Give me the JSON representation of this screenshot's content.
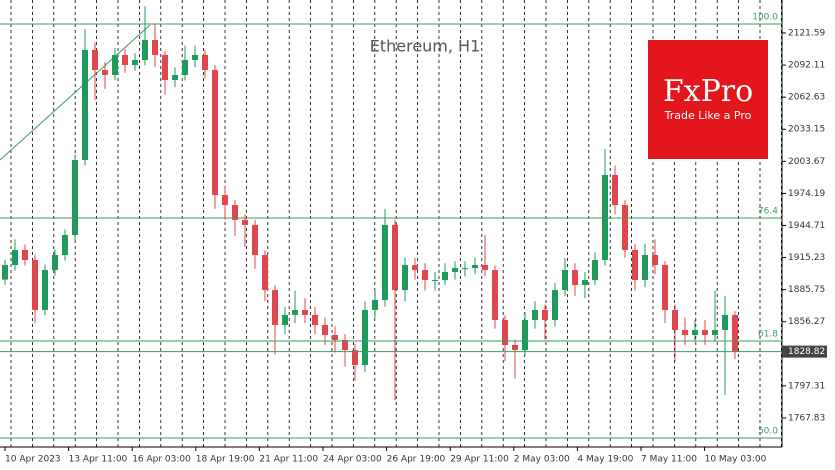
{
  "chart_data": {
    "type": "candlestick",
    "title": "Ethereum, H1",
    "open": [
      1895,
      1908.4,
      1922.2,
      1913.0,
      1867.1,
      1903.8,
      1917.6,
      1936.0,
      2004.9,
      2106.0,
      2087.6,
      2083.0,
      2101.4,
      2092.2,
      2096.8,
      2115.2,
      2101.4,
      2078.4,
      2083.0,
      2096.8,
      2101.4,
      2087.6,
      1972.7,
      1963.5,
      1949.8,
      1945.2,
      1917.6,
      1885.4,
      1853.3,
      1862.5,
      1867.1,
      1862.5,
      1853.3,
      1844.1,
      1839.5,
      1830.3,
      1816.5,
      1867.1,
      1876.3,
      1945.2,
      1885.4,
      1908.4,
      1903.8,
      1894.6,
      1894.6,
      1902.0,
      1905.6,
      1905.6,
      1908.4,
      1903.8,
      1857.9,
      1834.9,
      1830.3,
      1857.9,
      1867.1,
      1857.9,
      1885.4,
      1903.8,
      1890.0,
      1894.6,
      1913.0,
      1991.1,
      1963.5,
      1922.2,
      1894.6,
      1917.6,
      1908.4,
      1867.1,
      1848.7,
      1844.1,
      1848.7,
      1844.1,
      1848.7,
      1862.5
    ],
    "high": [
      1913.4,
      1932,
      1927.2,
      1918,
      1908.8,
      1922.6,
      1941,
      2010,
      2125,
      2113,
      2095,
      2108,
      2107,
      2103,
      2146,
      2130,
      2105,
      2090,
      2110,
      2110,
      2106,
      2092,
      1980,
      1968,
      1955,
      1950,
      1922,
      1890,
      1870,
      1885,
      1878,
      1870,
      1860,
      1852,
      1845,
      1836,
      1875,
      1885,
      1960,
      1950,
      1915,
      1915,
      1910,
      1902,
      1910,
      1912,
      1912,
      1915,
      1936,
      1908,
      1862,
      1840,
      1865,
      1875,
      1872,
      1892,
      1915,
      1910,
      1902,
      1920,
      2015,
      2000,
      1968,
      1928,
      1928,
      1932,
      1912,
      1872,
      1860,
      1858,
      1858,
      1885,
      1880,
      1866
    ],
    "low": [
      1890,
      1903.4,
      1908,
      1855,
      1862.1,
      1898.8,
      1912.6,
      1931,
      2000,
      2060,
      2070,
      2078,
      2085,
      2087,
      2092,
      2090,
      2065,
      2072,
      2078,
      2090,
      2080,
      1960,
      1950,
      1935,
      1925,
      1905,
      1875,
      1826,
      1845,
      1855,
      1855,
      1845,
      1835,
      1828,
      1815,
      1802,
      1810,
      1860,
      1870,
      1784,
      1875,
      1895,
      1885,
      1885,
      1890,
      1895,
      1898,
      1900,
      1898,
      1850,
      1820,
      1804,
      1825,
      1850,
      1840,
      1852,
      1880,
      1880,
      1878,
      1890,
      1908,
      1955,
      1915,
      1885,
      1888,
      1900,
      1855,
      1820,
      1835,
      1838,
      1835,
      1838,
      1789,
      1822
    ],
    "close": [
      1908.4,
      1922.2,
      1913.0,
      1867.1,
      1903.8,
      1917.6,
      1936.0,
      2004.9,
      2106.0,
      2087.6,
      2083.0,
      2101.4,
      2092.2,
      2096.8,
      2115.2,
      2101.4,
      2078.4,
      2083.0,
      2096.8,
      2101.4,
      2087.6,
      1972.7,
      1963.5,
      1949.8,
      1945.2,
      1917.6,
      1885.4,
      1853.3,
      1862.5,
      1867.1,
      1862.5,
      1853.3,
      1844.1,
      1839.5,
      1830.3,
      1816.5,
      1867.1,
      1876.3,
      1945.2,
      1885.4,
      1908.4,
      1903.8,
      1894.6,
      1894.6,
      1902.0,
      1905.6,
      1905.6,
      1908.4,
      1903.8,
      1857.9,
      1834.9,
      1830.3,
      1857.9,
      1867.1,
      1857.9,
      1885.4,
      1903.8,
      1890.0,
      1894.6,
      1913.0,
      1991.1,
      1963.5,
      1922.2,
      1894.6,
      1917.6,
      1908.4,
      1867.1,
      1848.7,
      1844.1,
      1848.7,
      1844.1,
      1848.7,
      1862.5,
      1828.82
    ],
    "up_color": "#1f9a5c",
    "down_color": "#e0474c",
    "ylim": [
      1741.18,
      2151.91
    ],
    "yticks": [
      2121.59,
      2092.11,
      2062.63,
      2033.15,
      2003.67,
      1974.19,
      1944.71,
      1915.23,
      1885.75,
      1856.27,
      1797.31,
      1767.83
    ],
    "x_labels": [
      "10 Apr 2023",
      "13 Apr 11:00",
      "16 Apr 03:00",
      "18 Apr 19:00",
      "21 Apr 11:00",
      "24 Apr 03:00",
      "26 Apr 19:00",
      "29 Apr 11:00",
      "2 May 03:00",
      "4 May 19:00",
      "7 May 11:00",
      "10 May 03:00"
    ],
    "fib_levels": [
      {
        "price": 2129.86,
        "level": {
          "value": 100,
          "label": "100.0"
        }
      },
      {
        "price": 1951.6,
        "level": 76.4
      },
      {
        "price": 1838.58,
        "level": 61.8
      },
      {
        "price": 1749.45,
        "level": {
          "value": 50,
          "label": "50.0"
        }
      }
    ],
    "fib_color": "#3c9a5f",
    "last_price": 1828.82
  },
  "brand": {
    "name": "FxPro",
    "tagline": "Trade Like a Pro"
  }
}
